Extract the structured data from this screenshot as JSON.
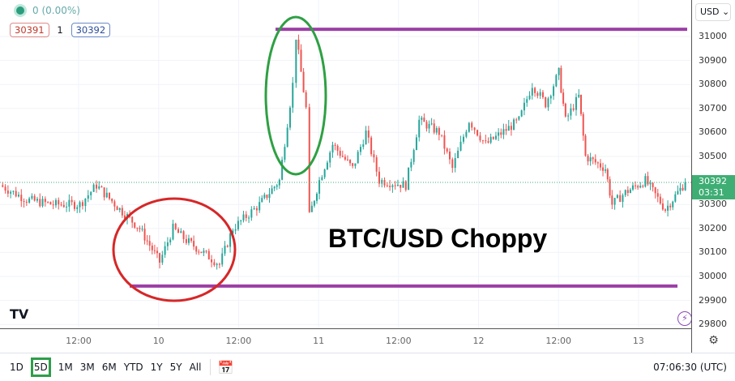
{
  "legend": {
    "change": "0 (0.00%)",
    "bid": "30391",
    "spread": "1",
    "ask": "30392"
  },
  "currency": "USD",
  "last_price": {
    "value": "30392",
    "countdown": "03:31"
  },
  "annotation_title": "BTC/USD Choppy",
  "price_ticks": [
    "31000",
    "30900",
    "30800",
    "30700",
    "30600",
    "30500",
    "30300",
    "30200",
    "30100",
    "30000",
    "29900",
    "29800"
  ],
  "time_ticks": [
    "12:00",
    "10",
    "12:00",
    "11",
    "12:00",
    "12",
    "12:00",
    "13"
  ],
  "ranges": [
    "1D",
    "5D",
    "1M",
    "3M",
    "6M",
    "YTD",
    "1Y",
    "5Y",
    "All"
  ],
  "active_range": "5D",
  "clock": "07:06:30 (UTC)",
  "colors": {
    "up": "#26a69a",
    "down": "#ef5350",
    "resistance": "#9c3fa6",
    "green_circle": "#2ea043",
    "red_circle": "#d62728",
    "last_price": "#3fae74"
  },
  "chart_data": {
    "type": "candlestick",
    "ylim": [
      29800,
      31000
    ],
    "resistance": 31030,
    "support": 29960,
    "last": 30392,
    "series": [
      [
        "9 00:00",
        30380
      ],
      [
        "9 04:00",
        30320
      ],
      [
        "9 08:00",
        30300
      ],
      [
        "9 12:00",
        30300
      ],
      [
        "9 14:30",
        30380
      ],
      [
        "9 18:00",
        30280
      ],
      [
        "9 21:00",
        30200
      ],
      [
        "10 00:00",
        30060
      ],
      [
        "10 02:00",
        30200
      ],
      [
        "10 04:00",
        30150
      ],
      [
        "10 07:00",
        30090
      ],
      [
        "10 09:00",
        30050
      ],
      [
        "10 11:00",
        30200
      ],
      [
        "10 15:00",
        30300
      ],
      [
        "10 18:00",
        30400
      ],
      [
        "10 20:00",
        30800
      ],
      [
        "10 20:30",
        31000
      ],
      [
        "10 22:00",
        30700
      ],
      [
        "10 22:30",
        30250
      ],
      [
        "11 00:00",
        30400
      ],
      [
        "11 02:00",
        30550
      ],
      [
        "11 05:00",
        30450
      ],
      [
        "11 07:00",
        30600
      ],
      [
        "11 09:00",
        30400
      ],
      [
        "11 13:00",
        30380
      ],
      [
        "11 15:00",
        30650
      ],
      [
        "11 18:00",
        30600
      ],
      [
        "11 20:00",
        30450
      ],
      [
        "11 22:30",
        30650
      ],
      [
        "12 01:00",
        30550
      ],
      [
        "12 06:00",
        30650
      ],
      [
        "12 08:00",
        30800
      ],
      [
        "12 10:00",
        30720
      ],
      [
        "12 12:00",
        30850
      ],
      [
        "12 13:00",
        30650
      ],
      [
        "12 15:00",
        30750
      ],
      [
        "12 16:00",
        30500
      ],
      [
        "12 19:00",
        30450
      ],
      [
        "12 20:00",
        30300
      ],
      [
        "12 22:00",
        30350
      ],
      [
        "13 01:00",
        30400
      ],
      [
        "13 04:00",
        30280
      ],
      [
        "13 07:00",
        30392
      ]
    ]
  }
}
